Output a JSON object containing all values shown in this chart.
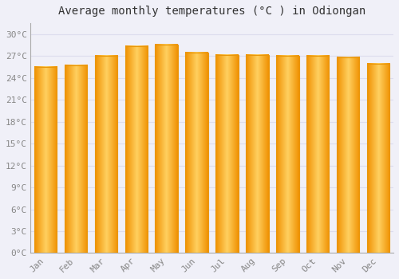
{
  "title": "Average monthly temperatures (°C ) in Odiongan",
  "months": [
    "Jan",
    "Feb",
    "Mar",
    "Apr",
    "May",
    "Jun",
    "Jul",
    "Aug",
    "Sep",
    "Oct",
    "Nov",
    "Dec"
  ],
  "values": [
    25.5,
    25.7,
    27.0,
    28.3,
    28.6,
    27.5,
    27.1,
    27.1,
    27.0,
    27.0,
    26.8,
    25.9
  ],
  "bar_edge_color": "#E8960A",
  "background_color": "#F0F0F8",
  "plot_bg_color": "#F0F0F8",
  "grid_color": "#DDDDEE",
  "yticks": [
    0,
    3,
    6,
    9,
    12,
    15,
    18,
    21,
    24,
    27,
    30
  ],
  "ylim": [
    0,
    31.5
  ],
  "title_fontsize": 10,
  "tick_fontsize": 8,
  "tick_color": "#888888",
  "bar_color_center": "#FFD060",
  "bar_color_edge": "#F09000"
}
